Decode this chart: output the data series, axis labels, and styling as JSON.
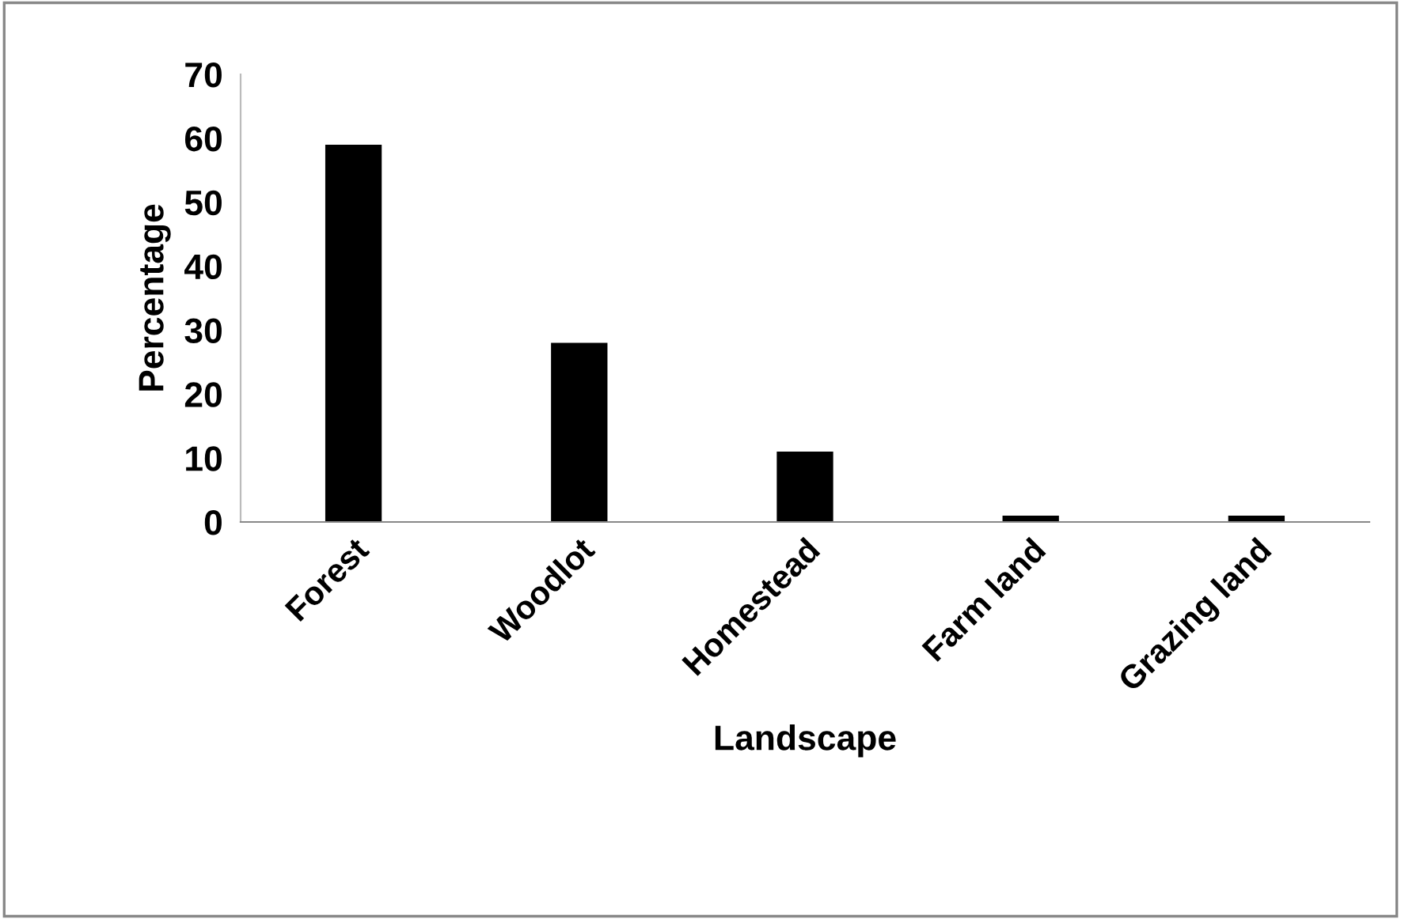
{
  "chart_data": {
    "type": "bar",
    "xlabel": "Landscape",
    "ylabel": "Percentage",
    "categories": [
      "Forest",
      "Woodlot",
      "Homestead",
      "Farm land",
      "Grazing land"
    ],
    "values": [
      59,
      28,
      11,
      1,
      1
    ],
    "color": "#000000",
    "ylim": [
      0,
      70
    ],
    "yticks": [
      0,
      10,
      20,
      30,
      40,
      50,
      60,
      70
    ],
    "grid": false,
    "legend": false
  }
}
